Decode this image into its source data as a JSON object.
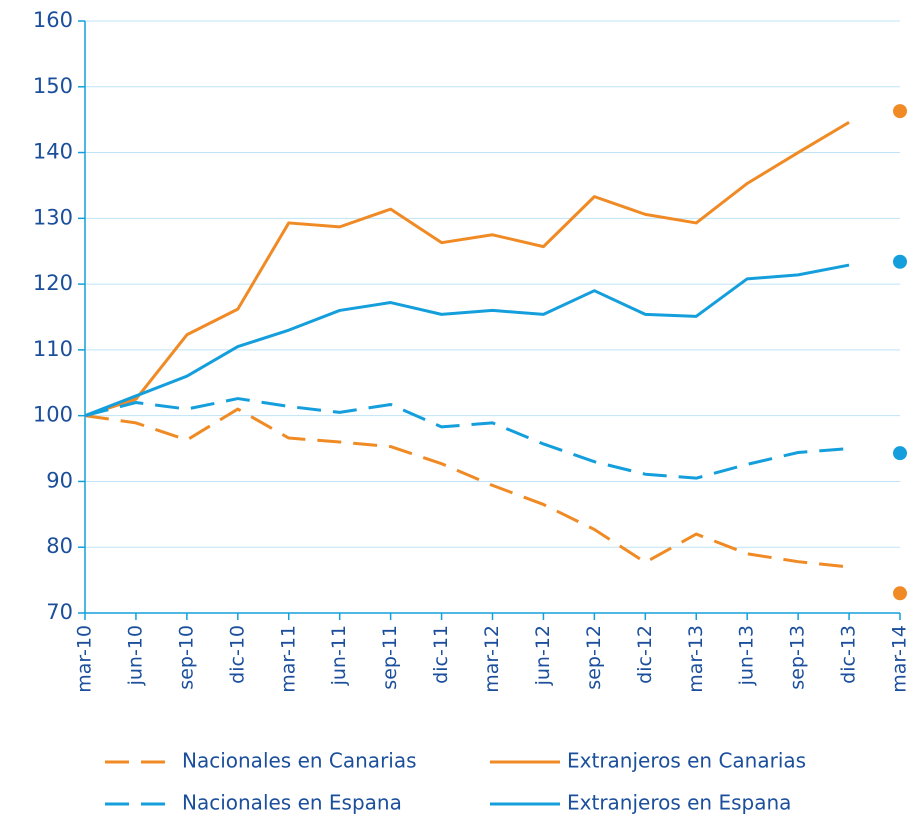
{
  "chart_data": {
    "type": "line",
    "categories": [
      "mar-10",
      "jun-10",
      "sep-10",
      "dic-10",
      "mar-11",
      "jun-11",
      "sep-11",
      "dic-11",
      "mar-12",
      "jun-12",
      "sep-12",
      "dic-12",
      "mar-13",
      "jun-13",
      "sep-13",
      "dic-13",
      "mar-14"
    ],
    "series": [
      {
        "name": "Nacionales en Canarias",
        "color": "#f08a24",
        "dashed": true,
        "values": [
          100,
          98.9,
          96.3,
          101,
          96.6,
          96,
          95.3,
          92.7,
          89.4,
          86.5,
          82.7,
          77.7,
          82,
          79,
          77.8,
          77,
          null
        ],
        "dot": 73
      },
      {
        "name": "Extranjeros en Canarias",
        "color": "#f08a24",
        "dashed": false,
        "values": [
          100,
          102.5,
          112.3,
          116.2,
          129.3,
          128.7,
          131.4,
          126.3,
          127.5,
          125.7,
          133.3,
          130.6,
          129.3,
          135.3,
          140,
          144.6,
          null
        ],
        "dot": 146.3
      },
      {
        "name": "Nacionales en Espana",
        "color": "#149fdc",
        "dashed": true,
        "values": [
          100,
          102,
          101,
          102.6,
          101.4,
          100.5,
          101.7,
          98.3,
          98.9,
          95.7,
          93,
          91.1,
          90.5,
          92.6,
          94.4,
          95,
          null
        ],
        "dot": 94.3
      },
      {
        "name": "Extranjeros en Espana",
        "color": "#149fdc",
        "dashed": false,
        "values": [
          100,
          103,
          106,
          110.5,
          113,
          116,
          117.2,
          115.4,
          116,
          115.4,
          119,
          115.4,
          115.1,
          120.8,
          121.4,
          122.9,
          null
        ],
        "dot": 123.4
      }
    ],
    "ylim": [
      70,
      160
    ],
    "yticks": [
      70,
      80,
      90,
      100,
      110,
      120,
      130,
      140,
      150,
      160
    ],
    "grid": true
  }
}
